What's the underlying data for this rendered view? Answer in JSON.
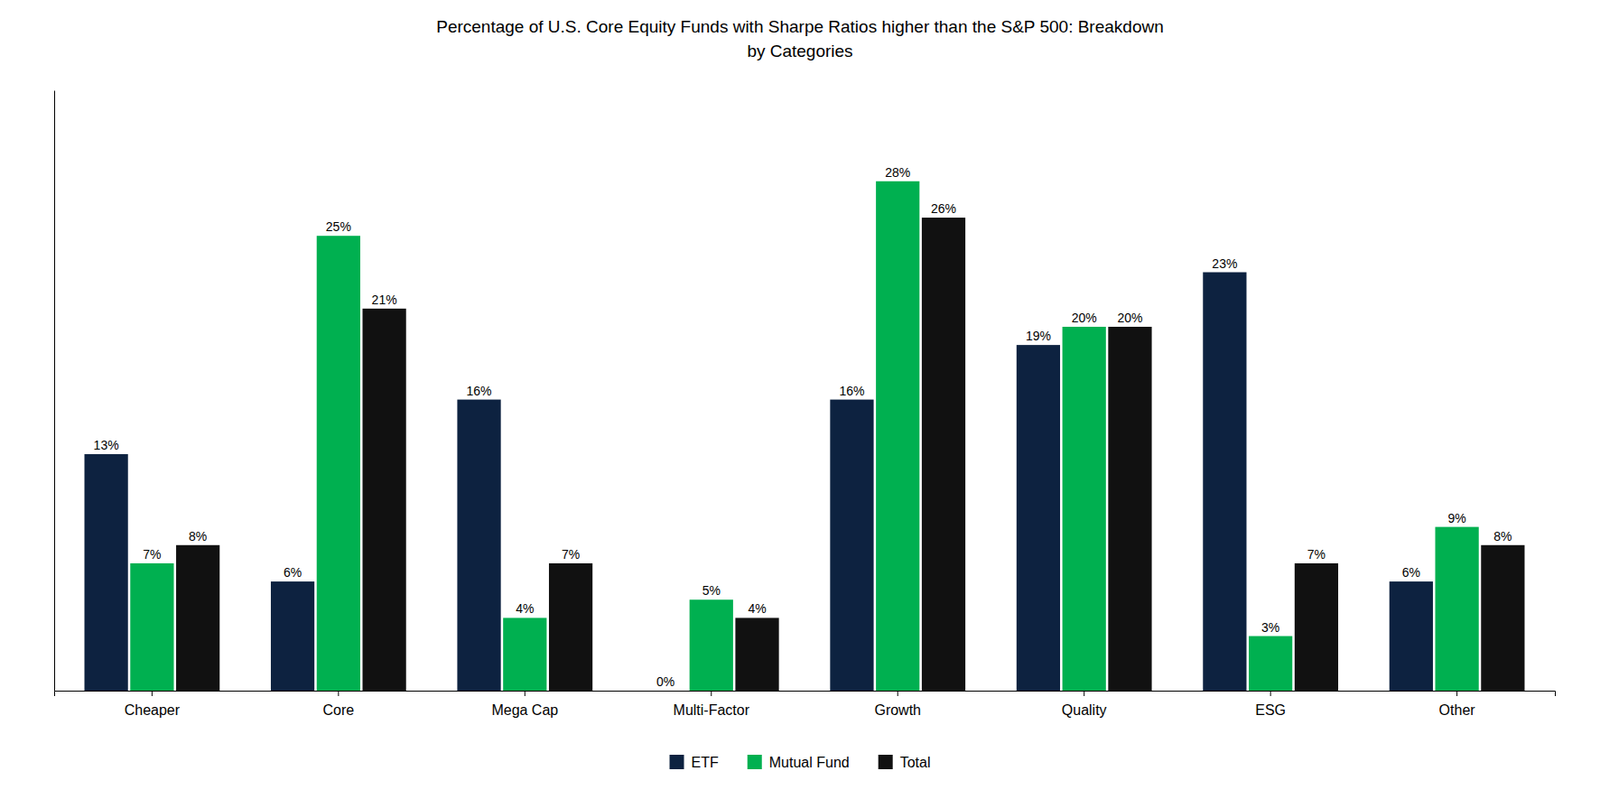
{
  "chart_data": {
    "type": "bar",
    "title": "Percentage of U.S. Core Equity Funds with Sharpe Ratios higher than the S&P 500: Breakdown\nby Categories",
    "categories": [
      "Cheaper",
      "Core",
      "Mega Cap",
      "Multi-Factor",
      "Growth",
      "Quality",
      "ESG",
      "Other"
    ],
    "series": [
      {
        "name": "ETF",
        "color": "#0d2240",
        "values": [
          13,
          6,
          16,
          0,
          16,
          19,
          23,
          6
        ],
        "value_labels": [
          "13%",
          "6%",
          "16%",
          "0%",
          "16%",
          "19%",
          "23%",
          "6%"
        ]
      },
      {
        "name": "Mutual Fund",
        "color": "#00b050",
        "values": [
          7,
          25,
          4,
          5,
          28,
          20,
          3,
          9
        ],
        "value_labels": [
          "7%",
          "25%",
          "4%",
          "5%",
          "28%",
          "20%",
          "3%",
          "9%"
        ]
      },
      {
        "name": "Total",
        "color": "#111111",
        "values": [
          8,
          21,
          7,
          4,
          26,
          20,
          7,
          8
        ],
        "value_labels": [
          "8%",
          "21%",
          "7%",
          "4%",
          "26%",
          "20%",
          "7%",
          "8%"
        ]
      }
    ],
    "ylim": [
      0,
      33
    ],
    "grid": false,
    "legend": "bottom",
    "data_labels": true,
    "tick_labels": "x"
  }
}
